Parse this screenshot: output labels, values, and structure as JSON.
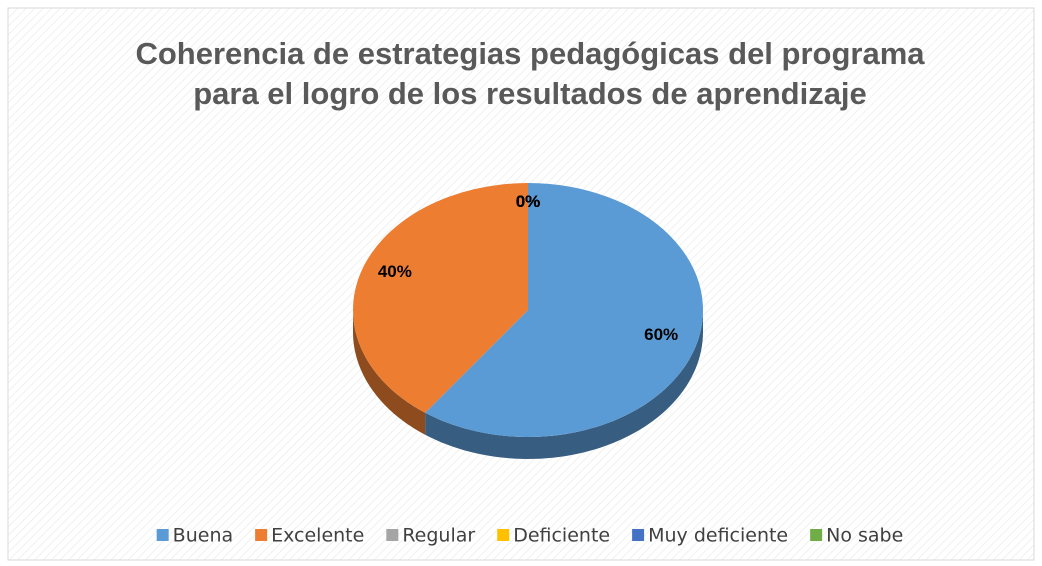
{
  "chart_data": {
    "type": "pie3d",
    "title": "Coherencia de estrategias pedagógicas del programa para el logro de los resultados de aprendizaje",
    "categories": [
      "Buena",
      "Excelente",
      "Regular",
      "Deficiente",
      "Muy deficiente",
      "No sabe"
    ],
    "values": [
      60,
      40,
      0,
      0,
      0,
      0
    ],
    "value_labels": [
      "60%",
      "40%",
      "0%",
      "0%",
      "0%",
      "0%"
    ],
    "colors": [
      "#5b9bd5",
      "#ed7d31",
      "#a5a5a5",
      "#ffc000",
      "#4472c4",
      "#70ad47"
    ],
    "legend": "bottom"
  }
}
